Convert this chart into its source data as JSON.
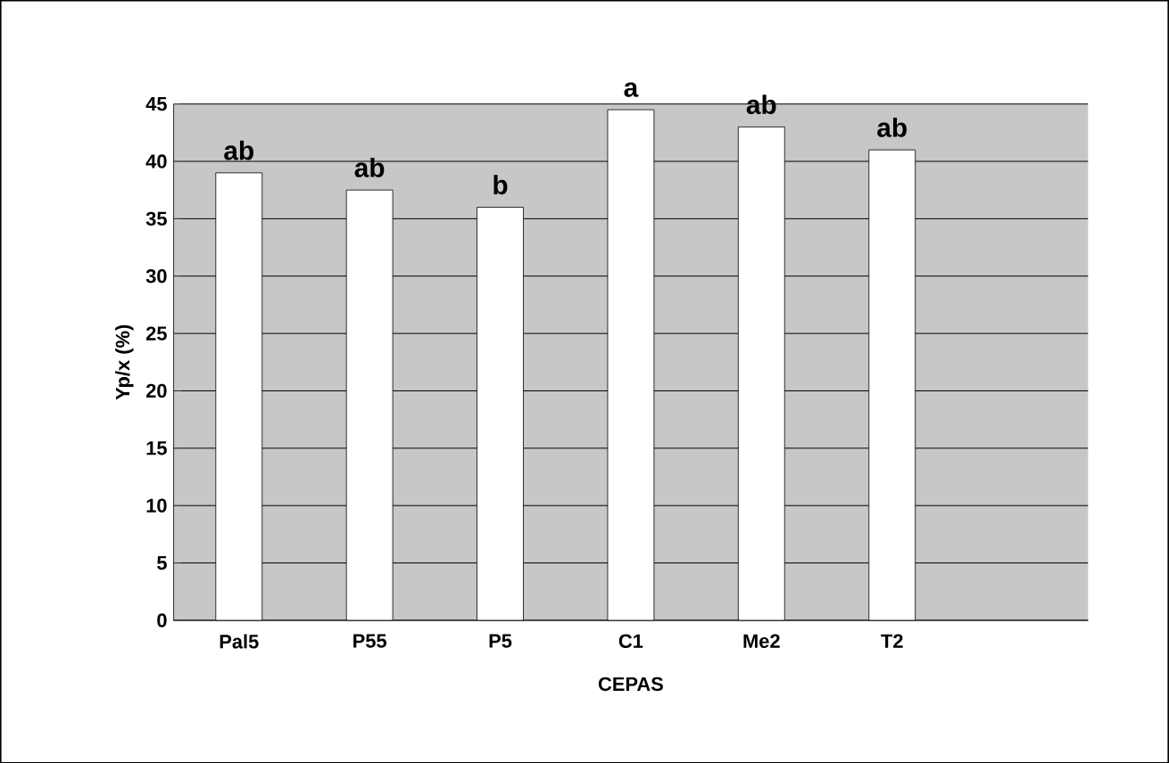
{
  "chart_data": {
    "type": "bar",
    "xlabel": "CEPAS",
    "ylabel": "Yp/x (%)",
    "categories": [
      "Pal5",
      "P55",
      "P5",
      "C1",
      "Me2",
      "T2"
    ],
    "values": [
      39,
      37.5,
      36,
      44.5,
      43,
      41
    ],
    "color": "#ffffff",
    "ylim": [
      0,
      45
    ],
    "yticks": [
      0,
      5,
      10,
      15,
      20,
      25,
      30,
      35,
      40,
      45
    ],
    "grid": "y",
    "annotations": [
      {
        "text": "ab",
        "x": "Pal5",
        "y": 39
      },
      {
        "text": "ab",
        "x": "P55",
        "y": 37.5
      },
      {
        "text": "b",
        "x": "P5",
        "y": 36
      },
      {
        "text": "a",
        "x": "C1",
        "y": 44.5
      },
      {
        "text": "ab",
        "x": "Me2",
        "y": 43
      },
      {
        "text": "ab",
        "x": "T2",
        "y": 41
      }
    ]
  }
}
